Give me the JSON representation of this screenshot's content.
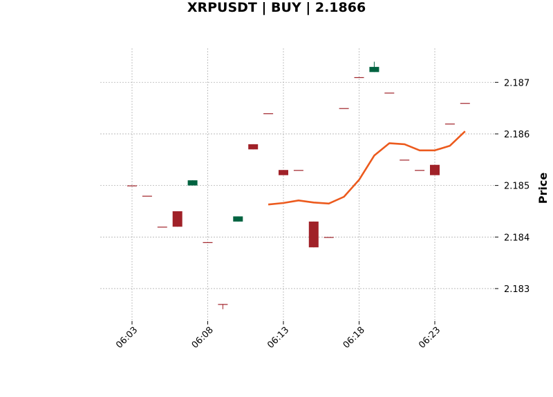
{
  "chart_data": {
    "type": "candlestick",
    "title": "XRPUSDT | BUY | 2.1866",
    "ylabel": "Price",
    "xlabel": "",
    "ylim": [
      2.18237,
      2.18766
    ],
    "y_ticks": [
      2.183,
      2.184,
      2.185,
      2.186,
      2.187
    ],
    "y_tick_labels": [
      "2.183",
      "2.184",
      "2.185",
      "2.186",
      "2.187"
    ],
    "x_ticks": [
      "06:03",
      "06:08",
      "06:13",
      "06:18",
      "06:23"
    ],
    "grid": true,
    "colors": {
      "up": "#006340",
      "down": "#a02128",
      "ma_line": "#ec5a1d",
      "grid": "#b0b0b0"
    },
    "candles": [
      {
        "time": "06:03",
        "open": 2.185,
        "high": 2.185,
        "low": 2.185,
        "close": 2.185
      },
      {
        "time": "06:04",
        "open": 2.1848,
        "high": 2.1848,
        "low": 2.1848,
        "close": 2.1848
      },
      {
        "time": "06:05",
        "open": 2.1842,
        "high": 2.1842,
        "low": 2.1842,
        "close": 2.1842
      },
      {
        "time": "06:06",
        "open": 2.1845,
        "high": 2.1845,
        "low": 2.1842,
        "close": 2.1842
      },
      {
        "time": "06:07",
        "open": 2.185,
        "high": 2.1851,
        "low": 2.185,
        "close": 2.1851
      },
      {
        "time": "06:08",
        "open": 2.1839,
        "high": 2.1839,
        "low": 2.1839,
        "close": 2.1839
      },
      {
        "time": "06:09",
        "open": 2.1827,
        "high": 2.1827,
        "low": 2.1826,
        "close": 2.1827
      },
      {
        "time": "06:10",
        "open": 2.1843,
        "high": 2.1844,
        "low": 2.1843,
        "close": 2.1844
      },
      {
        "time": "06:11",
        "open": 2.1858,
        "high": 2.1858,
        "low": 2.1857,
        "close": 2.1857
      },
      {
        "time": "06:12",
        "open": 2.1864,
        "high": 2.1864,
        "low": 2.1864,
        "close": 2.1864
      },
      {
        "time": "06:13",
        "open": 2.1853,
        "high": 2.1853,
        "low": 2.1852,
        "close": 2.1852
      },
      {
        "time": "06:14",
        "open": 2.1853,
        "high": 2.1853,
        "low": 2.1853,
        "close": 2.1853
      },
      {
        "time": "06:15",
        "open": 2.1843,
        "high": 2.1843,
        "low": 2.1838,
        "close": 2.1838
      },
      {
        "time": "06:16",
        "open": 2.184,
        "high": 2.184,
        "low": 2.184,
        "close": 2.184
      },
      {
        "time": "06:17",
        "open": 2.1865,
        "high": 2.1865,
        "low": 2.1865,
        "close": 2.1865
      },
      {
        "time": "06:18",
        "open": 2.1871,
        "high": 2.1871,
        "low": 2.1871,
        "close": 2.1871
      },
      {
        "time": "06:19",
        "open": 2.1872,
        "high": 2.1874,
        "low": 2.1872,
        "close": 2.1873
      },
      {
        "time": "06:20",
        "open": 2.1868,
        "high": 2.1868,
        "low": 2.1868,
        "close": 2.1868
      },
      {
        "time": "06:21",
        "open": 2.1855,
        "high": 2.1855,
        "low": 2.1855,
        "close": 2.1855
      },
      {
        "time": "06:22",
        "open": 2.1853,
        "high": 2.1853,
        "low": 2.1853,
        "close": 2.1853
      },
      {
        "time": "06:23",
        "open": 2.1854,
        "high": 2.1854,
        "low": 2.1852,
        "close": 2.1852
      },
      {
        "time": "06:24",
        "open": 2.1862,
        "high": 2.1862,
        "low": 2.1862,
        "close": 2.1862
      },
      {
        "time": "06:25",
        "open": 2.1866,
        "high": 2.1866,
        "low": 2.1866,
        "close": 2.1866
      }
    ],
    "ma_line": {
      "x": [
        "06:12",
        "06:13",
        "06:14",
        "06:15",
        "06:16",
        "06:17",
        "06:18",
        "06:19",
        "06:20",
        "06:21",
        "06:22",
        "06:23",
        "06:24",
        "06:25"
      ],
      "values": [
        2.18463,
        2.18466,
        2.18471,
        2.18467,
        2.18465,
        2.18478,
        2.18511,
        2.18558,
        2.18582,
        2.1858,
        2.18568,
        2.18568,
        2.18577,
        2.18605
      ]
    }
  }
}
